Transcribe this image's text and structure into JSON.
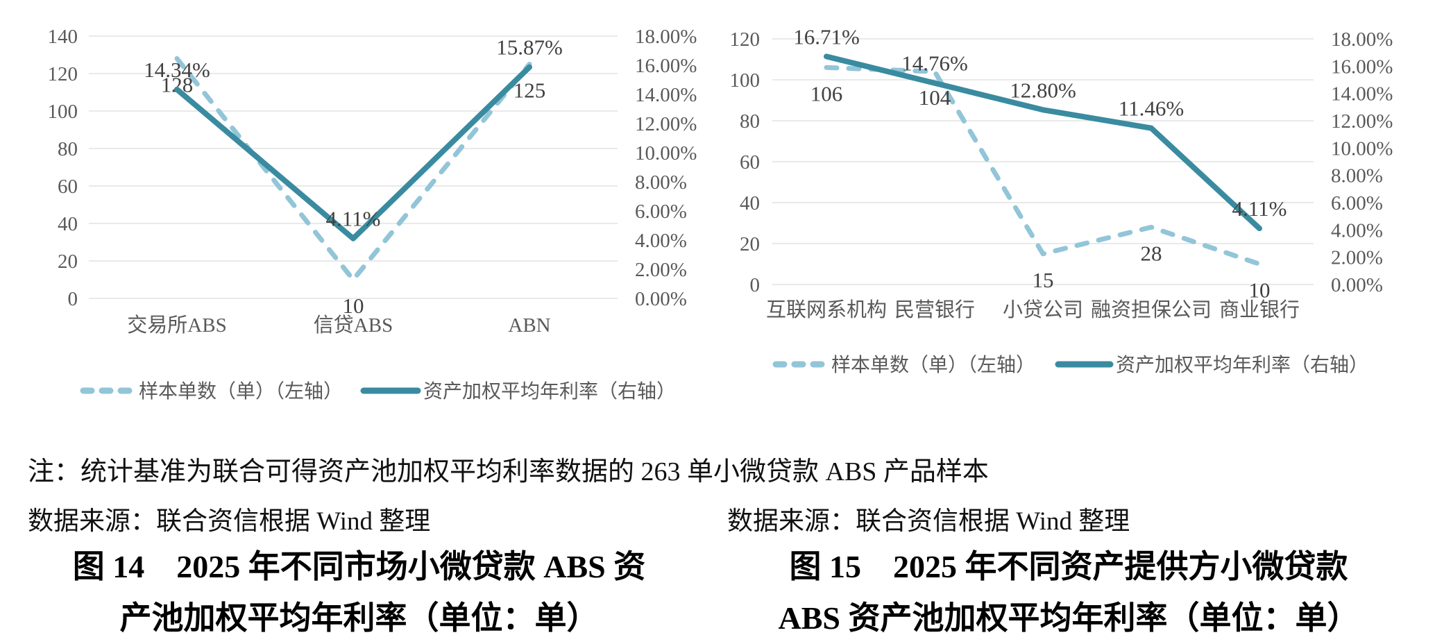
{
  "colors": {
    "line_solid": "#3a8ba0",
    "line_dashed": "#92c5d8",
    "gridline": "#e2e2e2",
    "axis_text": "#595959",
    "data_label_text": "#404040",
    "body_text": "#111111"
  },
  "chart_data": [
    {
      "id": "fig14",
      "type": "line",
      "title": "图 14  2025 年不同市场小微贷款 ABS 资产池加权平均年利率（单位：单）",
      "categories": [
        "交易所ABS",
        "信贷ABS",
        "ABN"
      ],
      "series": [
        {
          "name": "样本单数（单）（左轴）",
          "axis": "left",
          "line_style": "dashed",
          "color": "#92c5d8",
          "values": [
            128,
            10,
            125
          ],
          "data_labels": [
            "128",
            "10",
            "125"
          ]
        },
        {
          "name": "资产加权平均年利率（右轴）",
          "axis": "right",
          "line_style": "solid",
          "color": "#3a8ba0",
          "values": [
            14.34,
            4.11,
            15.87
          ],
          "data_labels": [
            "14.34%",
            "4.11%",
            "15.87%"
          ]
        }
      ],
      "left_axis": {
        "min": 0,
        "max": 140,
        "ticks_top_down": [
          "140",
          "120",
          "100",
          "80",
          "60",
          "40",
          "20",
          "0"
        ]
      },
      "right_axis": {
        "min": 0,
        "max": 18,
        "ticks_top_down": [
          "18.00%",
          "16.00%",
          "14.00%",
          "12.00%",
          "10.00%",
          "8.00%",
          "6.00%",
          "4.00%",
          "2.00%",
          "0.00%"
        ]
      },
      "grid": true,
      "legend_position": "bottom"
    },
    {
      "id": "fig15",
      "type": "line",
      "title": "图 15  2025 年不同资产提供方小微贷款 ABS 资产池加权平均年利率（单位：单）",
      "categories": [
        "互联网系机构",
        "民营银行",
        "小贷公司",
        "融资担保公司",
        "商业银行"
      ],
      "series": [
        {
          "name": "样本单数（单）（左轴）",
          "axis": "left",
          "line_style": "dashed",
          "color": "#92c5d8",
          "values": [
            106,
            104,
            15,
            28,
            10
          ],
          "data_labels": [
            "106",
            "104",
            "15",
            "28",
            "10"
          ]
        },
        {
          "name": "资产加权平均年利率（右轴）",
          "axis": "right",
          "line_style": "solid",
          "color": "#3a8ba0",
          "values": [
            16.71,
            14.76,
            12.8,
            11.46,
            4.11
          ],
          "data_labels": [
            "16.71%",
            "14.76%",
            "12.80%",
            "11.46%",
            "4.11%"
          ]
        }
      ],
      "left_axis": {
        "min": 0,
        "max": 120,
        "ticks_top_down": [
          "120",
          "100",
          "80",
          "60",
          "40",
          "20",
          "0"
        ]
      },
      "right_axis": {
        "min": 0,
        "max": 18,
        "ticks_top_down": [
          "18.00%",
          "16.00%",
          "14.00%",
          "12.00%",
          "10.00%",
          "8.00%",
          "6.00%",
          "4.00%",
          "2.00%",
          "0.00%"
        ]
      },
      "grid": true,
      "legend_position": "bottom"
    }
  ],
  "note": "注：统计基准为联合可得资产池加权平均利率数据的 263 单小微贷款 ABS 产品样本",
  "sources": {
    "left": "数据来源：联合资信根据 Wind 整理",
    "right": "数据来源：联合资信根据 Wind 整理"
  },
  "captions": {
    "fig14": {
      "line1": "图 14　2025 年不同市场小微贷款 ABS 资",
      "line2": "产池加权平均年利率（单位：单）"
    },
    "fig15": {
      "line1": "图 15　2025 年不同资产提供方小微贷款",
      "line2": "ABS 资产池加权平均年利率（单位：单）"
    }
  }
}
